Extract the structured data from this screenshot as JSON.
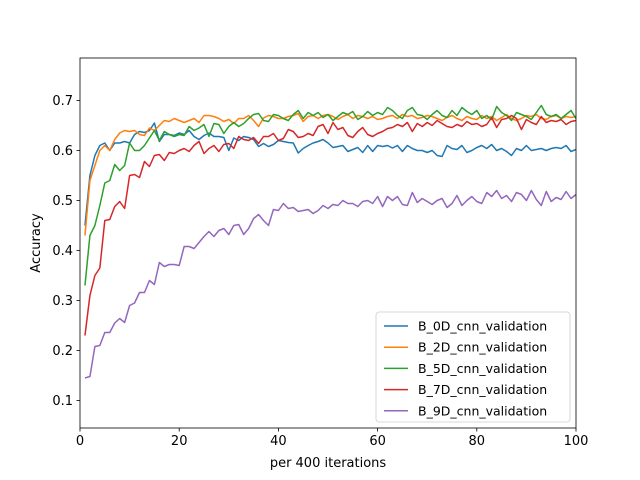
{
  "chart_data": {
    "type": "line",
    "title": "",
    "xlabel": "per 400 iterations",
    "ylabel": "Accuracy",
    "xlim": [
      0,
      100
    ],
    "ylim": [
      0.045,
      0.785
    ],
    "xticks": [
      0,
      20,
      40,
      60,
      80,
      100
    ],
    "yticks": [
      0.1,
      0.2,
      0.3,
      0.4,
      0.5,
      0.6,
      0.7
    ],
    "ytick_labels": [
      "0.1",
      "0.2",
      "0.3",
      "0.4",
      "0.5",
      "0.6",
      "0.7"
    ],
    "grid": false,
    "legend": "lower-right",
    "x_start": 1,
    "x_step": 1,
    "series": [
      {
        "name": "B_0D_cnn_validation",
        "color": "#1f77b4",
        "values": [
          0.45,
          0.55,
          0.59,
          0.61,
          0.615,
          0.6,
          0.615,
          0.615,
          0.618,
          0.615,
          0.632,
          0.638,
          0.636,
          0.64,
          0.655,
          0.618,
          0.632,
          0.632,
          0.63,
          0.635,
          0.632,
          0.64,
          0.628,
          0.622,
          0.63,
          0.635,
          0.628,
          0.628,
          0.626,
          0.6,
          0.625,
          0.62,
          0.628,
          0.626,
          0.622,
          0.608,
          0.614,
          0.608,
          0.612,
          0.62,
          0.618,
          0.616,
          0.615,
          0.595,
          0.604,
          0.61,
          0.615,
          0.618,
          0.622,
          0.615,
          0.606,
          0.608,
          0.61,
          0.598,
          0.602,
          0.606,
          0.596,
          0.61,
          0.598,
          0.61,
          0.608,
          0.61,
          0.605,
          0.61,
          0.598,
          0.61,
          0.604,
          0.6,
          0.6,
          0.596,
          0.6,
          0.59,
          0.588,
          0.61,
          0.604,
          0.602,
          0.61,
          0.596,
          0.6,
          0.606,
          0.61,
          0.604,
          0.612,
          0.6,
          0.604,
          0.598,
          0.59,
          0.604,
          0.6,
          0.61,
          0.6,
          0.602,
          0.604,
          0.6,
          0.604,
          0.606,
          0.604,
          0.61,
          0.598,
          0.602
        ]
      },
      {
        "name": "B_2D_cnn_validation",
        "color": "#ff7f0e",
        "values": [
          0.43,
          0.54,
          0.57,
          0.6,
          0.61,
          0.6,
          0.622,
          0.635,
          0.64,
          0.638,
          0.64,
          0.632,
          0.63,
          0.645,
          0.64,
          0.65,
          0.66,
          0.658,
          0.664,
          0.66,
          0.656,
          0.66,
          0.664,
          0.656,
          0.67,
          0.67,
          0.668,
          0.664,
          0.658,
          0.662,
          0.654,
          0.664,
          0.664,
          0.67,
          0.66,
          0.648,
          0.665,
          0.67,
          0.668,
          0.664,
          0.664,
          0.668,
          0.67,
          0.674,
          0.658,
          0.668,
          0.67,
          0.664,
          0.67,
          0.672,
          0.668,
          0.662,
          0.668,
          0.672,
          0.664,
          0.67,
          0.668,
          0.664,
          0.668,
          0.662,
          0.664,
          0.668,
          0.67,
          0.664,
          0.672,
          0.668,
          0.67,
          0.664,
          0.666,
          0.67,
          0.668,
          0.664,
          0.66,
          0.666,
          0.67,
          0.664,
          0.66,
          0.668,
          0.664,
          0.662,
          0.67,
          0.664,
          0.668,
          0.66,
          0.666,
          0.672,
          0.664,
          0.66,
          0.664,
          0.67,
          0.668,
          0.672,
          0.664,
          0.662,
          0.668,
          0.67,
          0.664,
          0.668,
          0.666,
          0.668
        ]
      },
      {
        "name": "B_5D_cnn_validation",
        "color": "#2ca02c",
        "values": [
          0.33,
          0.43,
          0.45,
          0.49,
          0.535,
          0.54,
          0.572,
          0.56,
          0.57,
          0.615,
          0.6,
          0.6,
          0.61,
          0.625,
          0.64,
          0.62,
          0.638,
          0.632,
          0.628,
          0.632,
          0.63,
          0.648,
          0.64,
          0.645,
          0.652,
          0.628,
          0.654,
          0.652,
          0.634,
          0.648,
          0.656,
          0.648,
          0.654,
          0.664,
          0.672,
          0.674,
          0.66,
          0.658,
          0.672,
          0.67,
          0.664,
          0.66,
          0.672,
          0.68,
          0.664,
          0.676,
          0.67,
          0.676,
          0.666,
          0.672,
          0.66,
          0.668,
          0.676,
          0.672,
          0.678,
          0.662,
          0.668,
          0.678,
          0.67,
          0.676,
          0.672,
          0.686,
          0.68,
          0.67,
          0.664,
          0.68,
          0.686,
          0.672,
          0.67,
          0.662,
          0.672,
          0.68,
          0.67,
          0.666,
          0.68,
          0.67,
          0.686,
          0.678,
          0.672,
          0.68,
          0.664,
          0.67,
          0.662,
          0.688,
          0.676,
          0.67,
          0.66,
          0.676,
          0.672,
          0.668,
          0.662,
          0.676,
          0.69,
          0.672,
          0.668,
          0.672,
          0.664,
          0.672,
          0.68,
          0.664
        ]
      },
      {
        "name": "B_7D_cnn_validation",
        "color": "#d62728",
        "values": [
          0.23,
          0.31,
          0.35,
          0.365,
          0.46,
          0.462,
          0.488,
          0.498,
          0.484,
          0.55,
          0.552,
          0.546,
          0.578,
          0.568,
          0.59,
          0.592,
          0.58,
          0.596,
          0.594,
          0.6,
          0.604,
          0.598,
          0.61,
          0.618,
          0.594,
          0.604,
          0.61,
          0.598,
          0.612,
          0.614,
          0.604,
          0.628,
          0.622,
          0.62,
          0.626,
          0.614,
          0.628,
          0.628,
          0.634,
          0.62,
          0.624,
          0.642,
          0.638,
          0.626,
          0.628,
          0.634,
          0.63,
          0.648,
          0.652,
          0.634,
          0.656,
          0.642,
          0.646,
          0.63,
          0.626,
          0.638,
          0.646,
          0.632,
          0.628,
          0.634,
          0.638,
          0.644,
          0.646,
          0.652,
          0.648,
          0.656,
          0.638,
          0.654,
          0.648,
          0.656,
          0.65,
          0.66,
          0.654,
          0.648,
          0.646,
          0.652,
          0.648,
          0.658,
          0.652,
          0.654,
          0.648,
          0.652,
          0.666,
          0.646,
          0.662,
          0.664,
          0.67,
          0.664,
          0.642,
          0.662,
          0.656,
          0.652,
          0.668,
          0.656,
          0.66,
          0.658,
          0.662,
          0.652,
          0.658,
          0.66
        ]
      },
      {
        "name": "B_9D_cnn_validation",
        "color": "#9467bd",
        "values": [
          0.145,
          0.148,
          0.208,
          0.21,
          0.236,
          0.236,
          0.255,
          0.264,
          0.256,
          0.29,
          0.295,
          0.316,
          0.316,
          0.34,
          0.332,
          0.376,
          0.368,
          0.372,
          0.372,
          0.37,
          0.408,
          0.408,
          0.404,
          0.416,
          0.428,
          0.438,
          0.428,
          0.44,
          0.444,
          0.432,
          0.45,
          0.452,
          0.432,
          0.444,
          0.464,
          0.472,
          0.46,
          0.45,
          0.482,
          0.48,
          0.494,
          0.484,
          0.486,
          0.478,
          0.48,
          0.482,
          0.474,
          0.48,
          0.49,
          0.484,
          0.492,
          0.49,
          0.5,
          0.494,
          0.494,
          0.488,
          0.498,
          0.5,
          0.494,
          0.508,
          0.488,
          0.508,
          0.5,
          0.508,
          0.492,
          0.49,
          0.516,
          0.496,
          0.504,
          0.498,
          0.492,
          0.5,
          0.504,
          0.486,
          0.494,
          0.51,
          0.49,
          0.5,
          0.508,
          0.498,
          0.494,
          0.516,
          0.508,
          0.52,
          0.504,
          0.51,
          0.498,
          0.516,
          0.512,
          0.5,
          0.52,
          0.502,
          0.49,
          0.518,
          0.498,
          0.506,
          0.502,
          0.518,
          0.504,
          0.512
        ]
      }
    ]
  }
}
